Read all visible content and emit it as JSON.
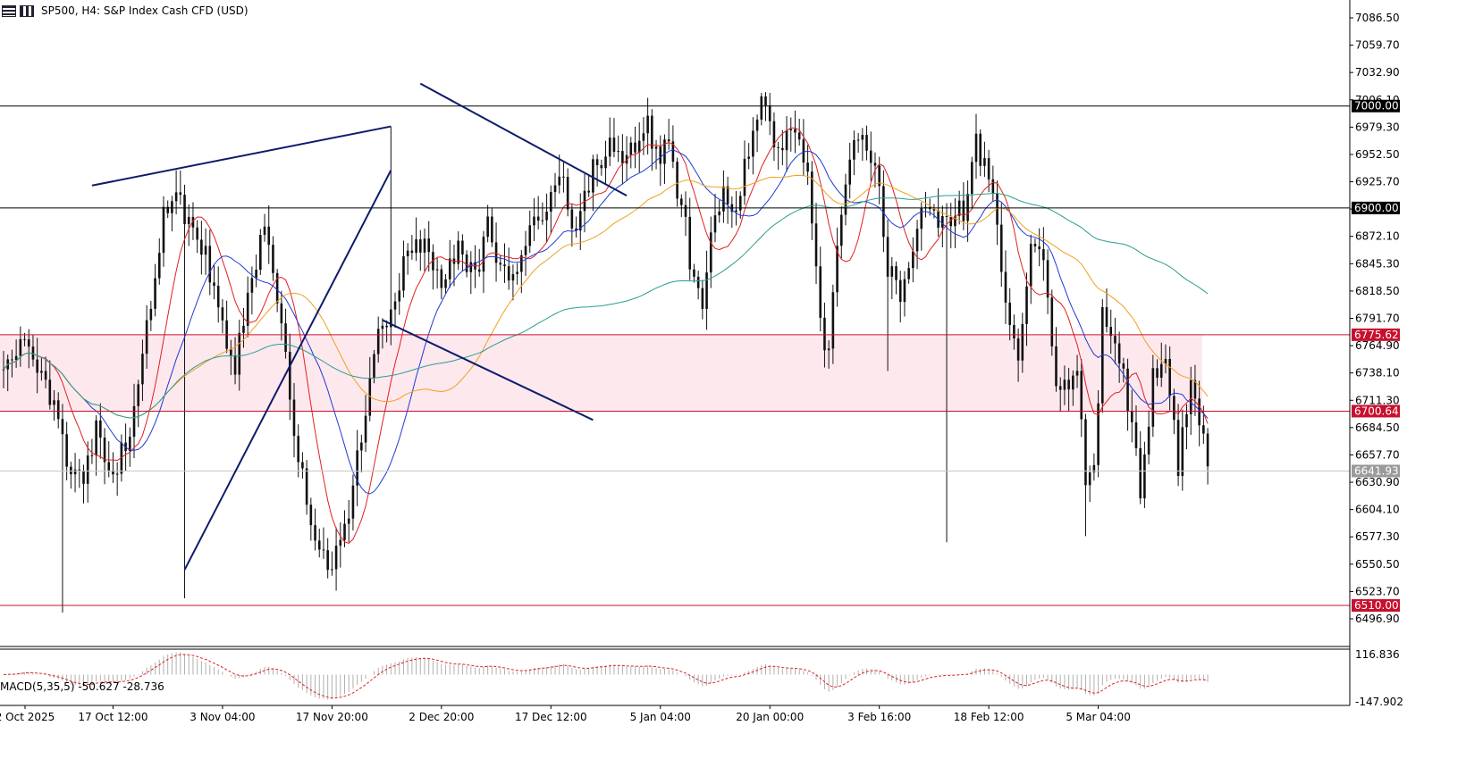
{
  "header": {
    "title": "SP500, H4:  S&P Index Cash CFD (USD)",
    "icons": [
      "menu-icon",
      "chart-type-icon"
    ]
  },
  "macd": {
    "label": "MACD(5,35,5) -50.627 -28.736"
  },
  "colors": {
    "candles": "#111111",
    "ma_red": "#e02020",
    "ma_blue": "#1e3ad6",
    "ma_orange": "#f0a020",
    "ma_teal": "#2a9d8f",
    "trendline": "#0d1b6b",
    "level_black": "#000000",
    "level_red": "#c8102e",
    "zone_fill": "#fde8ee",
    "current_price": "#9a9a9a"
  },
  "chart_data": {
    "type": "candlestick",
    "symbol": "SP500",
    "timeframe": "H4",
    "y_axis": {
      "min": 6470,
      "max": 7110,
      "tick_labels": [
        "7086.50",
        "7059.70",
        "7032.90",
        "7006.10",
        "6979.30",
        "6952.50",
        "6925.70",
        "6898.90",
        "6872.10",
        "6845.30",
        "6818.50",
        "6791.70",
        "6764.90",
        "6738.10",
        "6711.30",
        "6684.50",
        "6657.70",
        "6630.90",
        "6604.10",
        "6577.30",
        "6550.50",
        "6523.70",
        "6496.90"
      ]
    },
    "x_axis": {
      "tick_labels": [
        "2 Oct 2025",
        "17 Oct 12:00",
        "3 Nov 04:00",
        "17 Nov 20:00",
        "2 Dec 20:00",
        "17 Dec 12:00",
        "5 Jan 04:00",
        "20 Jan 00:00",
        "3 Feb 16:00",
        "18 Feb 12:00",
        "5 Mar 04:00"
      ]
    },
    "levels": [
      {
        "value": 7000.0,
        "label": "7000.00",
        "color": "black"
      },
      {
        "value": 6900.0,
        "label": "6900.00",
        "color": "black"
      },
      {
        "value": 6775.62,
        "label": "6775.62",
        "color": "red"
      },
      {
        "value": 6700.64,
        "label": "6700.64",
        "color": "red"
      },
      {
        "value": 6510.0,
        "label": "6510.00",
        "color": "red"
      }
    ],
    "current_price": {
      "value": 6641.93,
      "label": "6641.93"
    },
    "zone": {
      "from": 6700.64,
      "to": 6775.62
    },
    "price_path": [
      [
        0,
        6740
      ],
      [
        4,
        6770
      ],
      [
        8,
        6738
      ],
      [
        12,
        6705
      ],
      [
        16,
        6640
      ],
      [
        19,
        6640
      ],
      [
        22,
        6685
      ],
      [
        26,
        6640
      ],
      [
        30,
        6680
      ],
      [
        33,
        6760
      ],
      [
        38,
        6890
      ],
      [
        41,
        6925
      ],
      [
        44,
        6880
      ],
      [
        48,
        6850
      ],
      [
        52,
        6780
      ],
      [
        55,
        6745
      ],
      [
        59,
        6830
      ],
      [
        62,
        6880
      ],
      [
        66,
        6790
      ],
      [
        70,
        6650
      ],
      [
        74,
        6580
      ],
      [
        78,
        6550
      ],
      [
        82,
        6600
      ],
      [
        85,
        6680
      ],
      [
        89,
        6770
      ],
      [
        92,
        6790
      ],
      [
        96,
        6860
      ],
      [
        100,
        6870
      ],
      [
        104,
        6830
      ],
      [
        108,
        6860
      ],
      [
        112,
        6830
      ],
      [
        115,
        6890
      ],
      [
        118,
        6840
      ],
      [
        121,
        6840
      ],
      [
        124,
        6870
      ],
      [
        128,
        6900
      ],
      [
        132,
        6930
      ],
      [
        136,
        6880
      ],
      [
        140,
        6940
      ],
      [
        144,
        6960
      ],
      [
        148,
        6950
      ],
      [
        152,
        6985
      ],
      [
        156,
        6955
      ],
      [
        158,
        6970
      ],
      [
        160,
        6920
      ],
      [
        162,
        6880
      ],
      [
        164,
        6820
      ],
      [
        166,
        6800
      ],
      [
        168,
        6880
      ],
      [
        171,
        6920
      ],
      [
        174,
        6900
      ],
      [
        177,
        6960
      ],
      [
        180,
        7010
      ],
      [
        182,
        6975
      ],
      [
        185,
        6960
      ],
      [
        188,
        6980
      ],
      [
        191,
        6930
      ],
      [
        194,
        6780
      ],
      [
        196,
        6760
      ],
      [
        199,
        6900
      ],
      [
        202,
        6970
      ],
      [
        205,
        6960
      ],
      [
        208,
        6920
      ],
      [
        210,
        6840
      ],
      [
        213,
        6810
      ],
      [
        216,
        6870
      ],
      [
        219,
        6900
      ],
      [
        222,
        6880
      ],
      [
        225,
        6890
      ],
      [
        228,
        6900
      ],
      [
        231,
        6960
      ],
      [
        234,
        6940
      ],
      [
        236,
        6880
      ],
      [
        239,
        6780
      ],
      [
        241,
        6740
      ],
      [
        244,
        6870
      ],
      [
        247,
        6840
      ],
      [
        250,
        6720
      ],
      [
        253,
        6730
      ],
      [
        255,
        6730
      ],
      [
        257,
        6640
      ],
      [
        259,
        6640
      ],
      [
        261,
        6790
      ],
      [
        264,
        6770
      ],
      [
        267,
        6710
      ],
      [
        270,
        6625
      ],
      [
        273,
        6730
      ],
      [
        276,
        6740
      ],
      [
        279,
        6650
      ],
      [
        282,
        6730
      ],
      [
        284,
        6690
      ],
      [
        286,
        6645
      ]
    ],
    "n_candles": 287,
    "moving_averages": [
      {
        "color": "red",
        "period": 10
      },
      {
        "color": "blue",
        "period": 20
      },
      {
        "color": "orange",
        "period": 40
      },
      {
        "color": "teal",
        "period": 100
      }
    ],
    "trendlines": [
      {
        "from": [
          21,
          6922
        ],
        "to": [
          92,
          6980
        ]
      },
      {
        "from": [
          43,
          6545
        ],
        "to": [
          92,
          6937
        ]
      },
      {
        "from": [
          99,
          7022
        ],
        "to": [
          148,
          6912
        ]
      },
      {
        "from": [
          90,
          6790
        ],
        "to": [
          140,
          6692
        ]
      }
    ],
    "macd": {
      "params": "5,35,5",
      "value": -50.627,
      "signal": -28.736,
      "axis_labels": [
        "116.836",
        "-147.902"
      ],
      "min": -147.902,
      "max": 116.836
    }
  }
}
